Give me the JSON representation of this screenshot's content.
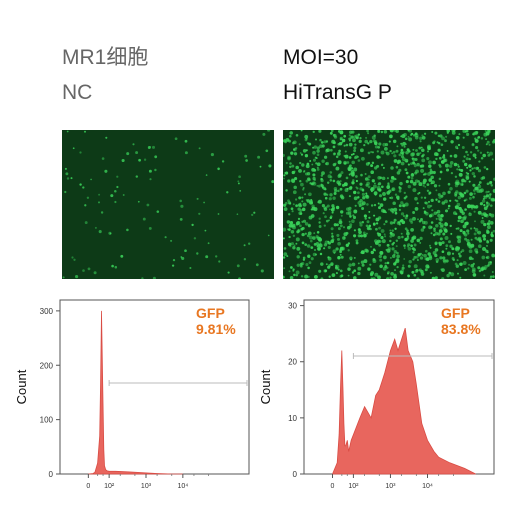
{
  "header": {
    "left": {
      "line1": "MR1细胞",
      "line2": "NC"
    },
    "right": {
      "line1": "MOI=30",
      "line2": "HiTransG P"
    }
  },
  "colors": {
    "histogram_fill": "#e8665e",
    "histogram_stroke": "#d94c44",
    "gfp_label": "#e87722",
    "micro_bg": "#0d3a17",
    "micro_cell": "#3ad35a",
    "gate_line": "#bbbbbb"
  },
  "micrographs": [
    {
      "name": "nc-micrograph",
      "cell_density": "sparse"
    },
    {
      "name": "moi30-micrograph",
      "cell_density": "dense"
    }
  ],
  "chart_data": [
    {
      "type": "area",
      "ylabel": "Count",
      "xscale": "log (biexponential)",
      "x_ticks": [
        "0",
        "10²",
        "10³",
        "10⁴"
      ],
      "x_tick_values": [
        0,
        100,
        1000,
        10000
      ],
      "y_ticks": [
        "0",
        "100",
        "200",
        "300"
      ],
      "ylim": [
        0,
        320
      ],
      "gate": {
        "label": "GFP",
        "value": "9.81%",
        "from": 100,
        "to": 200000
      },
      "x": [
        0,
        5,
        10,
        20,
        30,
        35,
        40,
        45,
        50,
        55,
        60,
        70,
        80,
        100,
        150,
        300,
        600,
        1000,
        2000,
        5000,
        10000
      ],
      "y": [
        0,
        1,
        3,
        20,
        70,
        170,
        300,
        210,
        120,
        45,
        15,
        8,
        6,
        5,
        5,
        4,
        3,
        2,
        1,
        0,
        0
      ]
    },
    {
      "type": "area",
      "ylabel": "Count",
      "xscale": "log (biexponential)",
      "x_ticks": [
        "0",
        "10²",
        "10³",
        "10⁴"
      ],
      "x_tick_values": [
        0,
        100,
        1000,
        10000
      ],
      "y_ticks": [
        "0",
        "10",
        "20",
        "30"
      ],
      "ylim": [
        0,
        31
      ],
      "gate": {
        "label": "GFP",
        "value": "83.8%",
        "from": 100,
        "to": 200000
      },
      "x": [
        0,
        5,
        10,
        15,
        20,
        25,
        30,
        35,
        40,
        50,
        60,
        80,
        100,
        150,
        200,
        300,
        400,
        500,
        700,
        1000,
        1300,
        1600,
        2000,
        2500,
        3000,
        4000,
        5000,
        7000,
        10000,
        15000,
        20000,
        40000,
        100000,
        200000
      ],
      "y": [
        0,
        2,
        7,
        16,
        22,
        15,
        9,
        5,
        5,
        6,
        4,
        6,
        7,
        10,
        12,
        10,
        14,
        15,
        18,
        22,
        24,
        22,
        24,
        26,
        22,
        20,
        16,
        9,
        6,
        4,
        3,
        2,
        1,
        0
      ]
    }
  ]
}
